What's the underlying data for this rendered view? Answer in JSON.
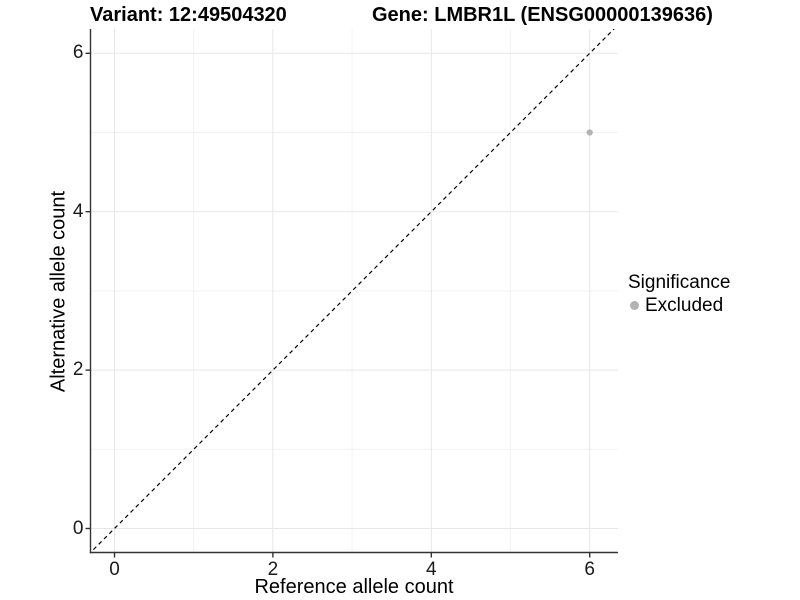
{
  "chart_data": {
    "type": "scatter",
    "title_left": "Variant: 12:49504320",
    "title_right": "Gene: LMBR1L (ENSG00000139636)",
    "xlabel": "Reference allele count",
    "ylabel": "Alternative allele count",
    "xlim": [
      -0.3,
      6.35
    ],
    "ylim": [
      -0.3,
      6.3
    ],
    "x_ticks": [
      0,
      2,
      4,
      6
    ],
    "y_ticks": [
      0,
      2,
      4,
      6
    ],
    "minor_ticks": [
      1,
      3,
      5
    ],
    "grid": true,
    "identity_line": {
      "style": "dashed",
      "slope": 1,
      "intercept": 0,
      "color": "#000000"
    },
    "series": [
      {
        "name": "Excluded",
        "color": "#b3b3b3",
        "points": [
          {
            "x": 6,
            "y": 5
          }
        ]
      }
    ],
    "legend": {
      "title": "Significance",
      "position": "right",
      "items": [
        {
          "label": "Excluded",
          "color": "#b3b3b3"
        }
      ]
    },
    "colors": {
      "axis_line": "#333333",
      "grid_major": "#e7e7e7",
      "grid_minor": "#f2f2f2",
      "background": "#ffffff"
    }
  }
}
